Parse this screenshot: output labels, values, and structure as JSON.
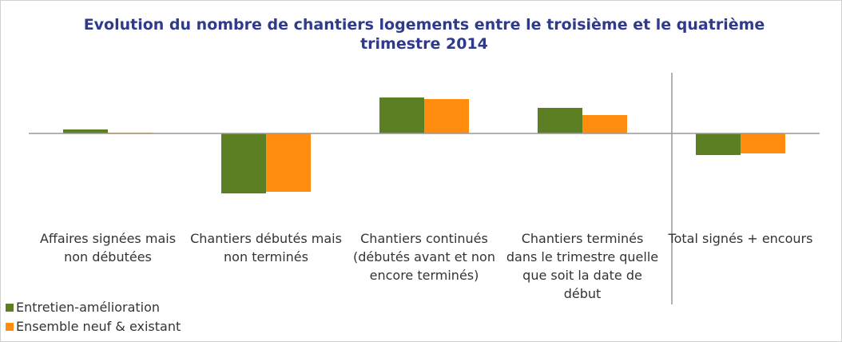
{
  "chart_data": {
    "type": "bar",
    "title": "Evolution du nombre de chantiers logements entre le troisième et le quatrième trimestre 2014",
    "categories": [
      "Affaires signées mais non débutées",
      "Chantiers débutés mais non terminés",
      "Chantiers continués (débutés avant et non encore terminés)",
      "Chantiers terminés dans le trimestre quelle que soit la date de début",
      "Total signés + encours"
    ],
    "series": [
      {
        "name": "Entretien-amélioration",
        "color": "#5b7f22",
        "values": [
          5,
          -75,
          45,
          32,
          -27
        ]
      },
      {
        "name": "Ensemble neuf & existant",
        "color": "#ff8c0f",
        "values": [
          1,
          -73,
          43,
          23,
          -25
        ]
      }
    ],
    "ylim": [
      -90,
      70
    ]
  }
}
